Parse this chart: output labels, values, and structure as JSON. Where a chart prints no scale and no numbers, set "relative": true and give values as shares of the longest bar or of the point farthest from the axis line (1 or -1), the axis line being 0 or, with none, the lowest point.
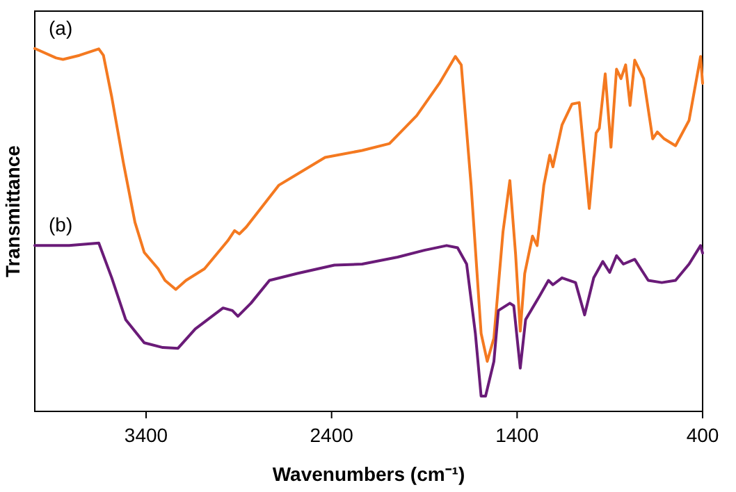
{
  "chart_data": {
    "type": "line",
    "relative": true,
    "xlabel": "Wavenumbers (cm⁻¹)",
    "ylabel": "Transmittance",
    "xlim": [
      4000,
      400
    ],
    "xticks": [
      3400,
      2400,
      1400,
      400
    ],
    "tick_labels": "x",
    "grid": false,
    "series": [
      {
        "name": "(a)",
        "color": "#f47920",
        "x": [
          4000,
          3885,
          3848,
          3760,
          3655,
          3630,
          3585,
          3523,
          3460,
          3410,
          3335,
          3298,
          3240,
          3185,
          3085,
          2960,
          2923,
          2897,
          2860,
          2685,
          2435,
          2235,
          2088,
          1941,
          1819,
          1733,
          1701,
          1648,
          1594,
          1561,
          1525,
          1476,
          1439,
          1408,
          1383,
          1359,
          1317,
          1292,
          1256,
          1224,
          1207,
          1158,
          1104,
          1065,
          1011,
          974,
          957,
          925,
          894,
          864,
          840,
          815,
          791,
          766,
          718,
          669,
          644,
          607,
          546,
          473,
          411,
          400
        ],
        "values": [
          1.0,
          0.974,
          0.97,
          0.981,
          0.999,
          0.981,
          0.866,
          0.687,
          0.521,
          0.438,
          0.393,
          0.361,
          0.336,
          0.361,
          0.393,
          0.47,
          0.498,
          0.489,
          0.508,
          0.623,
          0.7,
          0.719,
          0.738,
          0.815,
          0.904,
          0.978,
          0.955,
          0.623,
          0.215,
          0.138,
          0.202,
          0.495,
          0.636,
          0.432,
          0.221,
          0.38,
          0.483,
          0.457,
          0.623,
          0.706,
          0.674,
          0.789,
          0.847,
          0.851,
          0.559,
          0.767,
          0.78,
          0.93,
          0.728,
          0.943,
          0.917,
          0.955,
          0.843,
          0.968,
          0.917,
          0.751,
          0.77,
          0.751,
          0.732,
          0.802,
          0.978,
          0.904
        ]
      },
      {
        "name": "(b)",
        "color": "#6a1b78",
        "x": [
          4000,
          3815,
          3655,
          3585,
          3510,
          3410,
          3310,
          3228,
          3135,
          2985,
          2935,
          2905,
          2835,
          2735,
          2585,
          2385,
          2235,
          2044,
          1900,
          1780,
          1721,
          1672,
          1625,
          1594,
          1570,
          1525,
          1501,
          1439,
          1418,
          1383,
          1354,
          1280,
          1231,
          1207,
          1158,
          1085,
          1036,
          987,
          938,
          901,
          864,
          827,
          766,
          693,
          620,
          546,
          473,
          411,
          400
        ],
        "values": [
          0.457,
          0.457,
          0.464,
          0.368,
          0.253,
          0.189,
          0.176,
          0.174,
          0.227,
          0.285,
          0.278,
          0.262,
          0.298,
          0.361,
          0.38,
          0.403,
          0.406,
          0.425,
          0.444,
          0.457,
          0.451,
          0.406,
          0.215,
          0.042,
          0.042,
          0.138,
          0.278,
          0.298,
          0.291,
          0.119,
          0.253,
          0.317,
          0.361,
          0.349,
          0.368,
          0.355,
          0.266,
          0.368,
          0.413,
          0.383,
          0.429,
          0.406,
          0.419,
          0.361,
          0.355,
          0.361,
          0.406,
          0.457,
          0.436
        ]
      }
    ]
  }
}
